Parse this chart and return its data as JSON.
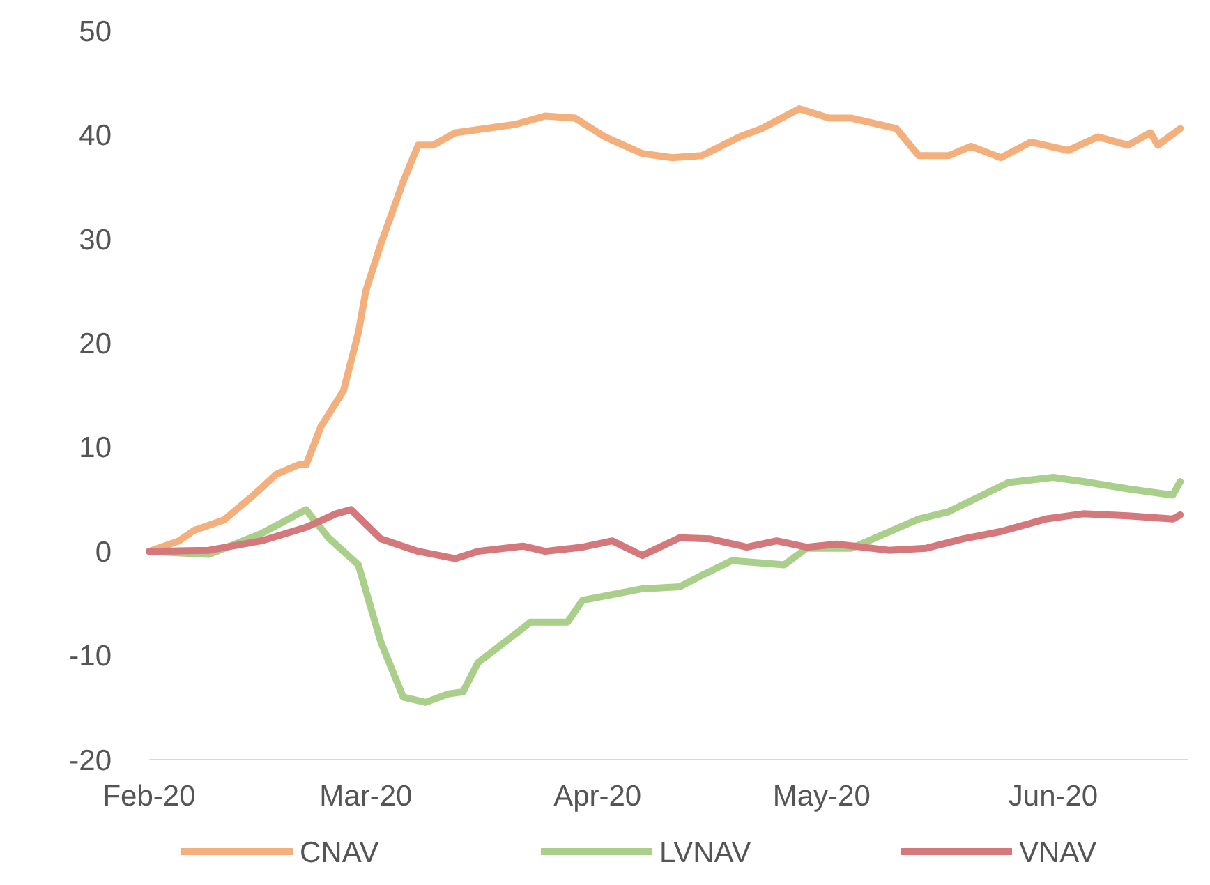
{
  "chart_data": {
    "type": "line",
    "xlim": [
      "2020-02-01",
      "2020-06-19"
    ],
    "ylim": [
      -20,
      50
    ],
    "yticks": [
      -20,
      -10,
      0,
      10,
      20,
      30,
      40,
      50
    ],
    "xticks": [
      {
        "value": "2020-02-01",
        "label": "Feb-20"
      },
      {
        "value": "2020-03-01",
        "label": "Mar-20"
      },
      {
        "value": "2020-04-01",
        "label": "Apr-20"
      },
      {
        "value": "2020-05-01",
        "label": "May-20"
      },
      {
        "value": "2020-06-01",
        "label": "Jun-20"
      }
    ],
    "grid": false,
    "legend": "bottom",
    "line_style": "solid",
    "marker": "none",
    "series": [
      {
        "name": "CNAV",
        "color": "#f4b07c",
        "x": [
          "2020-02-01",
          "2020-02-05",
          "2020-02-07",
          "2020-02-11",
          "2020-02-15",
          "2020-02-18",
          "2020-02-21",
          "2020-02-22",
          "2020-02-24",
          "2020-02-27",
          "2020-02-29",
          "2020-03-01",
          "2020-03-03",
          "2020-03-06",
          "2020-03-08",
          "2020-03-10",
          "2020-03-13",
          "2020-03-17",
          "2020-03-21",
          "2020-03-25",
          "2020-03-29",
          "2020-04-02",
          "2020-04-07",
          "2020-04-11",
          "2020-04-15",
          "2020-04-20",
          "2020-04-23",
          "2020-04-28",
          "2020-05-02",
          "2020-05-05",
          "2020-05-11",
          "2020-05-14",
          "2020-05-18",
          "2020-05-21",
          "2020-05-25",
          "2020-05-29",
          "2020-06-03",
          "2020-06-07",
          "2020-06-11",
          "2020-06-14",
          "2020-06-15",
          "2020-06-18"
        ],
        "values": [
          0,
          1,
          2,
          3,
          5.4,
          7.4,
          8.3,
          8.3,
          12,
          15.4,
          21,
          25,
          29.5,
          35.5,
          39,
          39,
          40.2,
          40.6,
          41,
          41.8,
          41.6,
          39.8,
          38.2,
          37.8,
          38,
          39.8,
          40.6,
          42.5,
          41.6,
          41.6,
          40.6,
          38,
          38,
          38.9,
          37.8,
          39.3,
          38.5,
          39.8,
          39,
          40.2,
          39,
          40.6
        ]
      },
      {
        "name": "LVNAV",
        "color": "#a9cf8a",
        "x": [
          "2020-02-01",
          "2020-02-09",
          "2020-02-16",
          "2020-02-22",
          "2020-02-25",
          "2020-02-29",
          "2020-03-03",
          "2020-03-06",
          "2020-03-09",
          "2020-03-12",
          "2020-03-14",
          "2020-03-16",
          "2020-03-22",
          "2020-03-23",
          "2020-03-28",
          "2020-03-30",
          "2020-04-07",
          "2020-04-12",
          "2020-04-15",
          "2020-04-19",
          "2020-04-26",
          "2020-04-29",
          "2020-05-05",
          "2020-05-14",
          "2020-05-18",
          "2020-05-26",
          "2020-06-01",
          "2020-06-05",
          "2020-06-11",
          "2020-06-17",
          "2020-06-18"
        ],
        "values": [
          0,
          -0.3,
          1.7,
          4,
          1.3,
          -1.3,
          -8.7,
          -14,
          -14.5,
          -13.7,
          -13.5,
          -10.7,
          -7.4,
          -6.8,
          -6.8,
          -4.7,
          -3.6,
          -3.4,
          -2.3,
          -0.9,
          -1.3,
          0.3,
          0.3,
          3.1,
          3.8,
          6.6,
          7.1,
          6.7,
          6,
          5.4,
          6.7
        ]
      },
      {
        "name": "VNAV",
        "color": "#d4787c",
        "x": [
          "2020-02-01",
          "2020-02-09",
          "2020-02-16",
          "2020-02-22",
          "2020-02-26",
          "2020-02-28",
          "2020-03-03",
          "2020-03-08",
          "2020-03-13",
          "2020-03-16",
          "2020-03-22",
          "2020-03-25",
          "2020-03-30",
          "2020-04-03",
          "2020-04-07",
          "2020-04-12",
          "2020-04-16",
          "2020-04-21",
          "2020-04-25",
          "2020-04-29",
          "2020-05-03",
          "2020-05-10",
          "2020-05-15",
          "2020-05-20",
          "2020-05-25",
          "2020-05-31",
          "2020-06-05",
          "2020-06-11",
          "2020-06-17",
          "2020-06-18"
        ],
        "values": [
          0,
          0.1,
          1,
          2.3,
          3.6,
          4,
          1.2,
          0,
          -0.7,
          0,
          0.5,
          0,
          0.4,
          1,
          -0.4,
          1.3,
          1.2,
          0.4,
          1,
          0.4,
          0.7,
          0.1,
          0.3,
          1.2,
          1.9,
          3.1,
          3.6,
          3.4,
          3.1,
          3.5
        ]
      }
    ]
  }
}
